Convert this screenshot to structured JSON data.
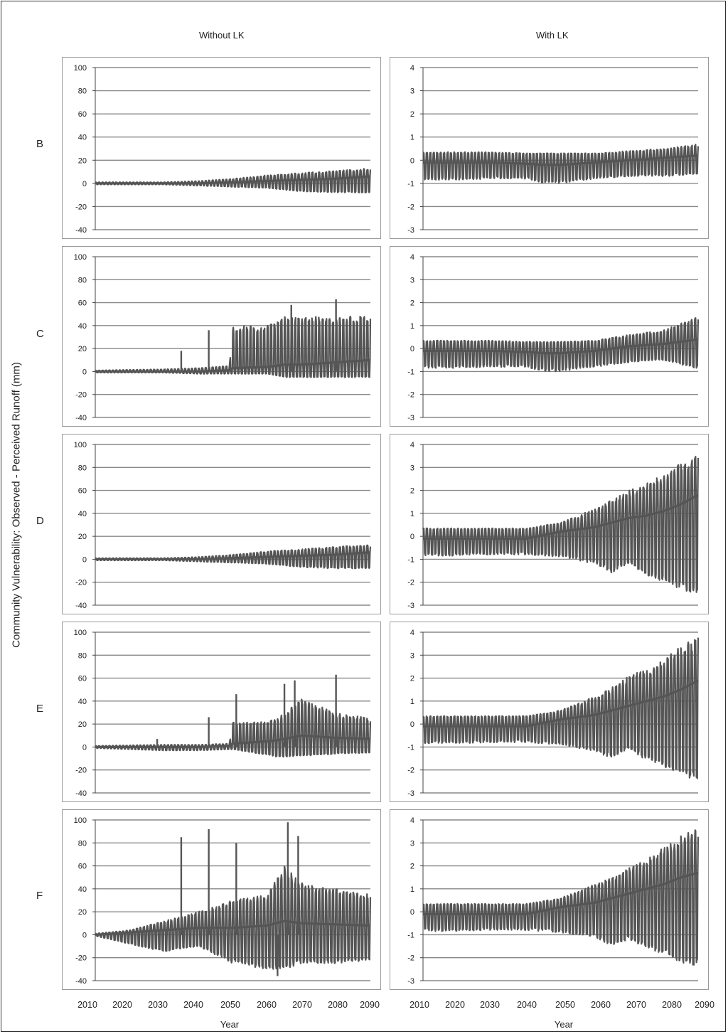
{
  "column_titles": {
    "left": "Without LK",
    "right": "With LK"
  },
  "y_axis_label": "Community Vulnerability: Observed - Perceived Runoff (mm)",
  "x_axis_label": "Year",
  "x_ticks": [
    "2010",
    "2020",
    "2030",
    "2040",
    "2050",
    "2060",
    "2070",
    "2080",
    "2090"
  ],
  "row_labels": [
    "B",
    "C",
    "D",
    "E",
    "F"
  ],
  "series_color": "#555555",
  "grid_color": "#888888",
  "chart_data": [
    {
      "type": "line",
      "panel": "B-without",
      "ylim": [
        -40,
        100
      ],
      "yticks": [
        100,
        80,
        60,
        40,
        20,
        0,
        -20,
        -40
      ],
      "xlim": [
        2010,
        2090
      ],
      "envelope": {
        "x": [
          2010,
          2030,
          2040,
          2050,
          2060,
          2070,
          2080,
          2090
        ],
        "upper": [
          1,
          1,
          2,
          4,
          7,
          9,
          11,
          13
        ],
        "lower": [
          -1,
          -1,
          -2,
          -3,
          -4,
          -7,
          -8,
          -8
        ],
        "center": [
          0,
          0,
          0,
          1,
          2,
          3,
          4,
          6
        ]
      },
      "spikes": []
    },
    {
      "type": "line",
      "panel": "B-with",
      "ylim": [
        -3,
        4
      ],
      "yticks": [
        4,
        3,
        2,
        1,
        0,
        -1,
        -2,
        -3
      ],
      "xlim": [
        2010,
        2090
      ],
      "envelope": {
        "x": [
          2010,
          2020,
          2030,
          2040,
          2045,
          2050,
          2060,
          2070,
          2080,
          2090
        ],
        "upper": [
          0.35,
          0.35,
          0.35,
          0.3,
          0.3,
          0.3,
          0.3,
          0.4,
          0.5,
          0.7
        ],
        "lower": [
          -0.85,
          -0.85,
          -0.8,
          -0.8,
          -1.0,
          -1.0,
          -0.8,
          -0.7,
          -0.7,
          -0.6
        ],
        "center": [
          -0.1,
          -0.1,
          -0.1,
          -0.15,
          -0.2,
          -0.2,
          -0.1,
          0,
          0.1,
          0.2
        ]
      },
      "spikes": []
    },
    {
      "type": "line",
      "panel": "C-without",
      "ylim": [
        -40,
        100
      ],
      "yticks": [
        100,
        80,
        60,
        40,
        20,
        0,
        -20,
        -40
      ],
      "xlim": [
        2010,
        2090
      ],
      "envelope": {
        "x": [
          2010,
          2030,
          2040,
          2049,
          2050,
          2060,
          2065,
          2070,
          2080,
          2090
        ],
        "upper": [
          1,
          2,
          3,
          5,
          40,
          40,
          48,
          48,
          48,
          48
        ],
        "lower": [
          -1,
          -1,
          -2,
          -2,
          -2,
          -2,
          -5,
          -5,
          -5,
          -5
        ],
        "center": [
          0,
          0,
          0,
          1,
          3,
          4,
          6,
          6,
          8,
          10
        ]
      },
      "spikes": [
        {
          "x": 2035,
          "y": 18
        },
        {
          "x": 2043,
          "y": 36
        },
        {
          "x": 2067,
          "y": 58
        },
        {
          "x": 2080,
          "y": 63
        }
      ]
    },
    {
      "type": "line",
      "panel": "C-with",
      "ylim": [
        -3,
        4
      ],
      "yticks": [
        4,
        3,
        2,
        1,
        0,
        -1,
        -2,
        -3
      ],
      "xlim": [
        2010,
        2090
      ],
      "envelope": {
        "x": [
          2010,
          2020,
          2030,
          2040,
          2045,
          2050,
          2060,
          2070,
          2080,
          2090
        ],
        "upper": [
          0.35,
          0.35,
          0.35,
          0.3,
          0.3,
          0.3,
          0.35,
          0.6,
          0.8,
          1.4
        ],
        "lower": [
          -0.85,
          -0.85,
          -0.8,
          -0.8,
          -1.0,
          -1.0,
          -0.8,
          -0.6,
          -0.5,
          -0.9
        ],
        "center": [
          -0.1,
          -0.1,
          -0.1,
          -0.15,
          -0.2,
          -0.2,
          -0.1,
          0.1,
          0.2,
          0.4
        ]
      },
      "spikes": []
    },
    {
      "type": "line",
      "panel": "D-without",
      "ylim": [
        -40,
        100
      ],
      "yticks": [
        100,
        80,
        60,
        40,
        20,
        0,
        -20,
        -40
      ],
      "xlim": [
        2010,
        2090
      ],
      "envelope": {
        "x": [
          2010,
          2030,
          2040,
          2050,
          2060,
          2070,
          2080,
          2090
        ],
        "upper": [
          1,
          1,
          2,
          4,
          7,
          9,
          11,
          13
        ],
        "lower": [
          -1,
          -1,
          -2,
          -3,
          -4,
          -7,
          -8,
          -8
        ],
        "center": [
          0,
          0,
          0,
          1,
          2,
          3,
          4,
          6
        ]
      },
      "spikes": []
    },
    {
      "type": "line",
      "panel": "D-with",
      "ylim": [
        -3,
        4
      ],
      "yticks": [
        4,
        3,
        2,
        1,
        0,
        -1,
        -2,
        -3
      ],
      "xlim": [
        2010,
        2090
      ],
      "envelope": {
        "x": [
          2010,
          2020,
          2030,
          2040,
          2050,
          2060,
          2065,
          2070,
          2075,
          2080,
          2085,
          2090
        ],
        "upper": [
          0.35,
          0.35,
          0.35,
          0.35,
          0.6,
          1.2,
          1.6,
          2.0,
          2.3,
          2.7,
          3.3,
          3.6
        ],
        "lower": [
          -0.85,
          -0.85,
          -0.8,
          -0.8,
          -0.9,
          -1.2,
          -1.6,
          -1.2,
          -1.7,
          -2.0,
          -2.3,
          -2.6
        ],
        "center": [
          -0.1,
          -0.1,
          -0.1,
          -0.1,
          0.2,
          0.4,
          0.6,
          0.8,
          0.9,
          1.1,
          1.4,
          1.8
        ]
      },
      "spikes": []
    },
    {
      "type": "line",
      "panel": "E-without",
      "ylim": [
        -40,
        100
      ],
      "yticks": [
        100,
        80,
        60,
        40,
        20,
        0,
        -20,
        -40
      ],
      "xlim": [
        2010,
        2090
      ],
      "envelope": {
        "x": [
          2010,
          2030,
          2040,
          2049,
          2050,
          2060,
          2063,
          2070,
          2080,
          2090
        ],
        "upper": [
          1,
          2,
          2,
          3,
          22,
          22,
          25,
          42,
          30,
          25
        ],
        "lower": [
          -1,
          -3,
          -3,
          -2,
          -2,
          -7,
          -9,
          -8,
          -6,
          -5
        ],
        "center": [
          0,
          0,
          0,
          1,
          3,
          5,
          6,
          10,
          8,
          7
        ]
      },
      "spikes": [
        {
          "x": 2028,
          "y": 7
        },
        {
          "x": 2043,
          "y": 26
        },
        {
          "x": 2051,
          "y": 46
        },
        {
          "x": 2065,
          "y": 55
        },
        {
          "x": 2068,
          "y": 58
        },
        {
          "x": 2080,
          "y": 63
        }
      ]
    },
    {
      "type": "line",
      "panel": "E-with",
      "ylim": [
        -3,
        4
      ],
      "yticks": [
        4,
        3,
        2,
        1,
        0,
        -1,
        -2,
        -3
      ],
      "xlim": [
        2010,
        2090
      ],
      "envelope": {
        "x": [
          2010,
          2020,
          2030,
          2040,
          2050,
          2060,
          2065,
          2070,
          2075,
          2080,
          2085,
          2090
        ],
        "upper": [
          0.35,
          0.35,
          0.35,
          0.35,
          0.6,
          1.2,
          1.6,
          2.1,
          2.4,
          2.8,
          3.4,
          3.8
        ],
        "lower": [
          -0.85,
          -0.85,
          -0.8,
          -0.8,
          -0.9,
          -1.2,
          -1.5,
          -1.1,
          -1.6,
          -1.9,
          -2.2,
          -2.5
        ],
        "center": [
          -0.1,
          -0.1,
          -0.1,
          -0.1,
          0.2,
          0.4,
          0.6,
          0.8,
          1.0,
          1.2,
          1.5,
          1.9
        ]
      },
      "spikes": []
    },
    {
      "type": "line",
      "panel": "F-without",
      "ylim": [
        -40,
        100
      ],
      "yticks": [
        100,
        80,
        60,
        40,
        20,
        0,
        -20,
        -40
      ],
      "xlim": [
        2010,
        2090
      ],
      "envelope": {
        "x": [
          2010,
          2020,
          2030,
          2040,
          2050,
          2060,
          2065,
          2070,
          2080,
          2090
        ],
        "upper": [
          1,
          4,
          12,
          20,
          30,
          35,
          60,
          45,
          40,
          35
        ],
        "lower": [
          -1,
          -8,
          -15,
          -10,
          -25,
          -30,
          -30,
          -25,
          -25,
          -22
        ],
        "center": [
          0,
          2,
          4,
          6,
          6,
          8,
          12,
          10,
          9,
          8
        ]
      },
      "spikes": [
        {
          "x": 2035,
          "y": 85
        },
        {
          "x": 2043,
          "y": 92
        },
        {
          "x": 2051,
          "y": 80
        },
        {
          "x": 2066,
          "y": 98
        },
        {
          "x": 2069,
          "y": 86
        },
        {
          "x": 2063,
          "y": -36
        }
      ]
    },
    {
      "type": "line",
      "panel": "F-with",
      "ylim": [
        -3,
        4
      ],
      "yticks": [
        4,
        3,
        2,
        1,
        0,
        -1,
        -2,
        -3
      ],
      "xlim": [
        2010,
        2090
      ],
      "envelope": {
        "x": [
          2010,
          2020,
          2030,
          2040,
          2050,
          2060,
          2065,
          2070,
          2075,
          2080,
          2085,
          2090
        ],
        "upper": [
          0.35,
          0.35,
          0.35,
          0.35,
          0.6,
          1.2,
          1.5,
          2.0,
          2.3,
          2.8,
          3.3,
          3.7
        ],
        "lower": [
          -0.85,
          -0.85,
          -0.8,
          -0.8,
          -0.9,
          -1.1,
          -1.5,
          -1.2,
          -1.6,
          -1.9,
          -2.2,
          -2.4
        ],
        "center": [
          -0.1,
          -0.1,
          -0.1,
          -0.1,
          0.2,
          0.4,
          0.6,
          0.8,
          1.0,
          1.2,
          1.5,
          1.7
        ]
      },
      "spikes": []
    }
  ]
}
